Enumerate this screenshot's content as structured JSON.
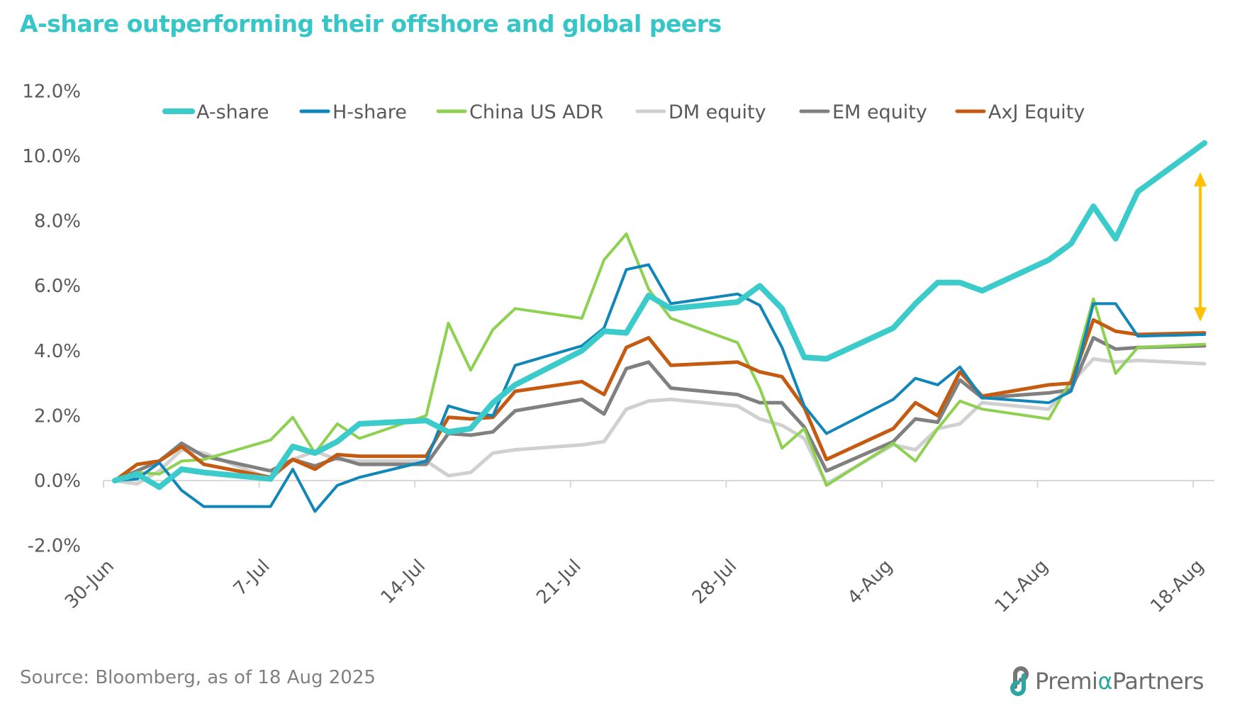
{
  "title": "A-share outperforming their offshore and global peers",
  "source": "Source: Bloomberg, as of 18 Aug 2025",
  "logo": {
    "icon": "premia-partners-logo-icon",
    "text_before": "Premi",
    "text_alpha": "α",
    "text_after": "Partners"
  },
  "colors": {
    "title": "#36C6C8",
    "axis": "#D9D9D9",
    "text": "#595959",
    "arrow": "#FFC000"
  },
  "chart_data": {
    "type": "line",
    "title": "A-share outperforming their offshore and global peers",
    "xlabel": "",
    "ylabel": "",
    "ylim": [
      -2.0,
      12.0
    ],
    "y_ticks": [
      "12.0%",
      "10.0%",
      "8.0%",
      "6.0%",
      "4.0%",
      "2.0%",
      "0.0%",
      "-2.0%"
    ],
    "y_tick_values": [
      12,
      10,
      8,
      6,
      4,
      2,
      0,
      -2
    ],
    "x_ticks": [
      "30-Jun",
      "7-Jul",
      "14-Jul",
      "21-Jul",
      "28-Jul",
      "4-Aug",
      "11-Aug",
      "18-Aug"
    ],
    "x_tick_days": [
      0,
      7,
      14,
      21,
      28,
      35,
      42,
      49
    ],
    "x_days_note": "calendar days since 30-Jun",
    "x": [
      0,
      1,
      2,
      3,
      4,
      7,
      8,
      9,
      10,
      11,
      14,
      15,
      16,
      17,
      18,
      21,
      22,
      23,
      24,
      25,
      28,
      29,
      30,
      31,
      32,
      35,
      36,
      37,
      38,
      39,
      42,
      43,
      44,
      45,
      46,
      49
    ],
    "dates": [
      "30-Jun",
      "1-Jul",
      "2-Jul",
      "3-Jul",
      "4-Jul",
      "7-Jul",
      "8-Jul",
      "9-Jul",
      "10-Jul",
      "11-Jul",
      "14-Jul",
      "15-Jul",
      "16-Jul",
      "17-Jul",
      "18-Jul",
      "21-Jul",
      "22-Jul",
      "23-Jul",
      "24-Jul",
      "25-Jul",
      "28-Jul",
      "29-Jul",
      "30-Jul",
      "31-Jul",
      "1-Aug",
      "4-Aug",
      "5-Aug",
      "6-Aug",
      "7-Aug",
      "8-Aug",
      "11-Aug",
      "12-Aug",
      "13-Aug",
      "14-Aug",
      "15-Aug",
      "18-Aug"
    ],
    "legend_position": "top",
    "grid": false,
    "annotation": "double-headed arrow at 18-Aug spanning the gap between A-share and peers",
    "series": [
      {
        "name": "DM equity",
        "color": "#D0D0D0",
        "width": 5,
        "values": [
          0,
          -0.1,
          0.3,
          0.95,
          0.85,
          0.05,
          0.65,
          0.9,
          0.65,
          0.6,
          0.6,
          0.15,
          0.25,
          0.85,
          0.95,
          1.1,
          1.2,
          2.2,
          2.45,
          2.5,
          2.3,
          1.9,
          1.7,
          1.3,
          -0.1,
          1.1,
          0.95,
          1.6,
          1.75,
          2.4,
          2.2,
          3.0,
          3.75,
          3.65,
          3.7,
          3.6
        ]
      },
      {
        "name": "EM equity",
        "color": "#808080",
        "width": 5,
        "values": [
          0,
          0.3,
          0.6,
          1.15,
          0.75,
          0.3,
          0.65,
          0.45,
          0.7,
          0.5,
          0.5,
          1.45,
          1.4,
          1.5,
          2.15,
          2.5,
          2.05,
          3.45,
          3.65,
          2.85,
          2.65,
          2.4,
          2.4,
          1.65,
          0.3,
          1.2,
          1.9,
          1.8,
          3.1,
          2.55,
          2.7,
          2.8,
          4.4,
          4.05,
          4.1,
          4.15
        ]
      },
      {
        "name": "China US ADR",
        "color": "#8ED150",
        "width": 4,
        "values": [
          0,
          0.25,
          0.2,
          0.6,
          0.65,
          1.25,
          1.95,
          0.85,
          1.75,
          1.3,
          2.0,
          4.85,
          3.4,
          4.65,
          5.3,
          5.0,
          6.8,
          7.6,
          5.9,
          5.0,
          4.25,
          2.85,
          1.0,
          1.6,
          -0.15,
          1.15,
          0.6,
          1.6,
          2.45,
          2.2,
          1.9,
          3.1,
          5.6,
          3.3,
          4.1,
          4.2
        ]
      },
      {
        "name": "AxJ Equity",
        "color": "#C55A11",
        "width": 5,
        "values": [
          0,
          0.5,
          0.6,
          1.05,
          0.5,
          0.1,
          0.65,
          0.35,
          0.8,
          0.75,
          0.75,
          1.95,
          1.9,
          1.95,
          2.75,
          3.05,
          2.65,
          4.1,
          4.4,
          3.55,
          3.65,
          3.35,
          3.2,
          2.25,
          0.65,
          1.6,
          2.4,
          2.0,
          3.35,
          2.6,
          2.95,
          3.0,
          4.95,
          4.6,
          4.5,
          4.55
        ]
      },
      {
        "name": "H-share",
        "color": "#1186B8",
        "width": 4,
        "values": [
          0,
          0.05,
          0.55,
          -0.3,
          -0.8,
          -0.8,
          0.35,
          -0.95,
          -0.15,
          0.1,
          0.6,
          2.3,
          2.1,
          2.0,
          3.55,
          4.15,
          4.7,
          6.5,
          6.65,
          5.45,
          5.75,
          5.4,
          4.1,
          2.3,
          1.45,
          2.5,
          3.15,
          2.95,
          3.5,
          2.55,
          2.4,
          2.75,
          5.45,
          5.45,
          4.45,
          4.5
        ]
      },
      {
        "name": "A-share",
        "color": "#3CCBCB",
        "width": 8,
        "values": [
          0,
          0.2,
          -0.2,
          0.35,
          0.25,
          0.05,
          1.05,
          0.85,
          1.2,
          1.75,
          1.85,
          1.5,
          1.6,
          2.4,
          2.95,
          4.0,
          4.6,
          4.55,
          5.7,
          5.3,
          5.5,
          6.0,
          5.3,
          3.8,
          3.75,
          4.7,
          5.45,
          6.1,
          6.1,
          5.85,
          6.8,
          7.3,
          8.45,
          7.45,
          8.9,
          10.4
        ]
      }
    ],
    "legend_order": [
      "A-share",
      "H-share",
      "China US ADR",
      "DM equity",
      "EM equity",
      "AxJ Equity"
    ],
    "arrow": {
      "x_day": 49,
      "from_value": 4.9,
      "to_value": 9.5,
      "color": "#FFC000"
    }
  }
}
